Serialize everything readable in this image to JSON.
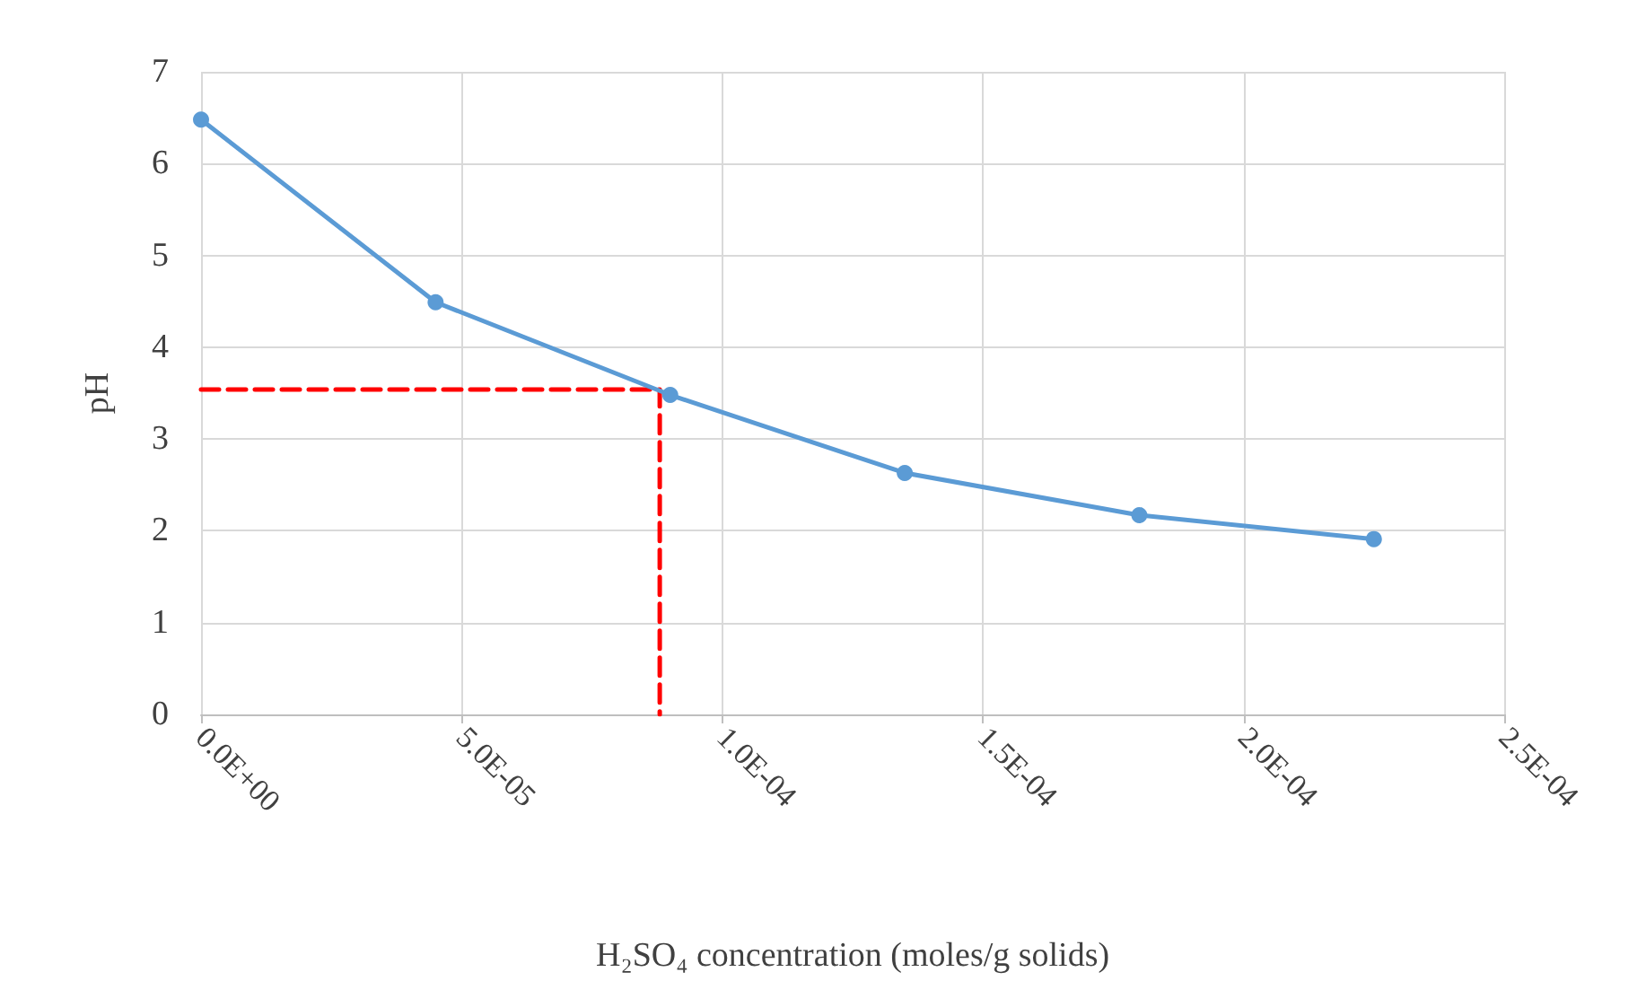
{
  "chart_data": {
    "type": "line",
    "xlabel": "H₂SO₄ concentration (moles/g solids)",
    "ylabel": "pH",
    "series": [
      {
        "color": "#5b9bd5",
        "marker": "circle",
        "line_style": "solid",
        "x": [
          0,
          4.5e-05,
          9e-05,
          0.000135,
          0.00018,
          0.000225
        ],
        "values": [
          6.48,
          4.49,
          3.48,
          2.63,
          2.17,
          1.91
        ]
      },
      {
        "color": "#ff0000",
        "marker": "none",
        "line_style": "dashed",
        "x": [
          0,
          8.8e-05,
          8.8e-05
        ],
        "values": [
          3.54,
          3.54,
          0
        ]
      }
    ],
    "xlim": [
      0,
      0.00025
    ],
    "xticks": [
      {
        "value": 0,
        "label": "0.0E+00"
      },
      {
        "value": 5e-05,
        "label": "5.0E-05"
      },
      {
        "value": 0.0001,
        "label": "1.0E-04"
      },
      {
        "value": 0.00015,
        "label": "1.5E-04"
      },
      {
        "value": 0.0002,
        "label": "2.0E-04"
      },
      {
        "value": 0.00025,
        "label": "2.5E-04"
      }
    ],
    "ylim": [
      0,
      7
    ],
    "yticks": [
      0,
      1,
      2,
      3,
      4,
      5,
      6,
      7
    ],
    "grid": true
  }
}
